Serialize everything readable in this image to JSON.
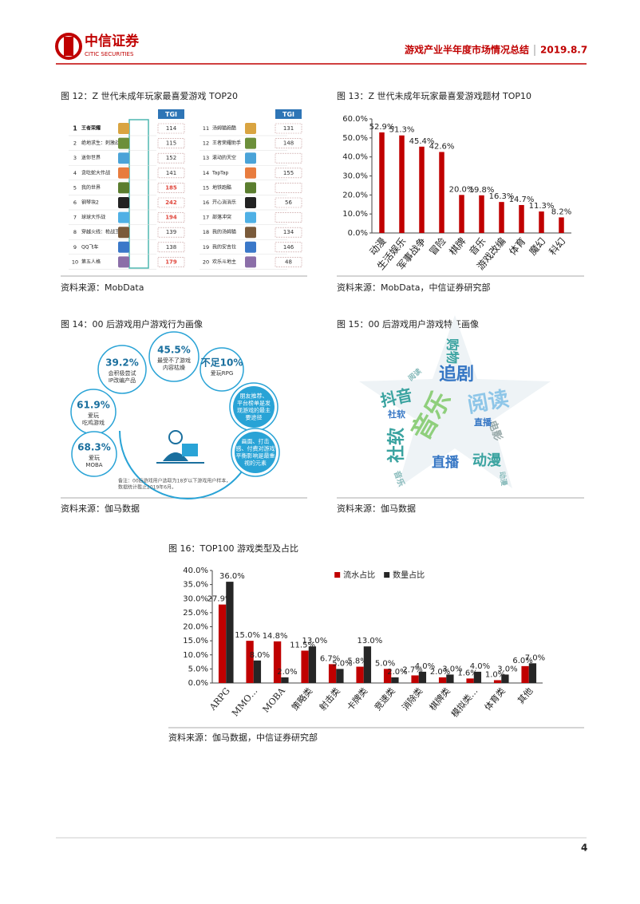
{
  "header": {
    "logo_name": "中信证券",
    "logo_en": "CITIC SECURITIES",
    "report_title": "游戏产业半年度市场情况总结",
    "date": "2019.8.7"
  },
  "figure12": {
    "title": "图 12：Z 世代未成年玩家最喜爱游戏 TOP20",
    "column_header": "TGI",
    "rows": [
      {
        "rank": 1,
        "name": "王者荣耀",
        "tgi": 114
      },
      {
        "rank": 2,
        "name": "绝地求生：刺激战场",
        "tgi": 115
      },
      {
        "rank": 3,
        "name": "迷你世界",
        "tgi": 152
      },
      {
        "rank": 4,
        "name": "贪吃蛇大作战",
        "tgi": 141
      },
      {
        "rank": 5,
        "name": "我的世界",
        "tgi": 185,
        "color": "#e0463c"
      },
      {
        "rank": 6,
        "name": "钢琴块2",
        "tgi": 242,
        "color": "#e0463c"
      },
      {
        "rank": 7,
        "name": "球球大作战",
        "tgi": 194,
        "color": "#e0463c"
      },
      {
        "rank": 8,
        "name": "穿越火线：枪战王者",
        "tgi": 139
      },
      {
        "rank": 9,
        "name": "QQ飞车",
        "tgi": 138
      },
      {
        "rank": 10,
        "name": "第五人格",
        "tgi": 179,
        "color": "#e0463c"
      },
      {
        "rank": 11,
        "name": "汤姆猫跑酷",
        "tgi": 131
      },
      {
        "rank": 12,
        "name": "王者荣耀助手",
        "tgi": 148
      },
      {
        "rank": 13,
        "name": "滚动的天空"
      },
      {
        "rank": 14,
        "name": "TapTap",
        "tgi": 155
      },
      {
        "rank": 15,
        "name": "地铁跑酷"
      },
      {
        "rank": 16,
        "name": "开心消消乐",
        "tgi": 56
      },
      {
        "rank": 17,
        "name": "部落冲突"
      },
      {
        "rank": 18,
        "name": "我的汤姆猫",
        "tgi": 134
      },
      {
        "rank": 19,
        "name": "我的安吉拉",
        "tgi": 146
      },
      {
        "rank": 20,
        "name": "欢乐斗地主",
        "tgi": 48
      }
    ],
    "source": "资料来源：MobData"
  },
  "chart_data": [
    {
      "type": "bar",
      "title": "图 13：Z 世代未成年玩家最喜爱游戏题材 TOP10",
      "categories": [
        "动漫",
        "生活娱乐",
        "军事战争",
        "冒险",
        "棋牌",
        "音乐",
        "游戏改编",
        "体育",
        "魔幻",
        "科幻"
      ],
      "values": [
        52.9,
        51.3,
        45.4,
        42.6,
        20.0,
        19.8,
        16.3,
        14.7,
        11.3,
        8.2
      ],
      "value_labels": [
        "52.9%",
        "51.3%",
        "45.4%",
        "42.6%",
        "20.0%",
        "19.8%",
        "16.3%",
        "14.7%",
        "11.3%",
        "8.2%"
      ],
      "color": "#c00000",
      "ylim": [
        0,
        60
      ],
      "yticks": [
        {
          "value": 0,
          "label": "0.0%"
        },
        {
          "value": 10,
          "label": "10.0%"
        },
        {
          "value": 20,
          "label": "20.0%"
        },
        {
          "value": 30,
          "label": "30.0%"
        },
        {
          "value": 40,
          "label": "40.0%"
        },
        {
          "value": 50,
          "label": "50.0%"
        },
        {
          "value": 60,
          "label": "60.0%"
        }
      ],
      "grid": false,
      "source": "资料来源：MobData，中信证券研究部"
    },
    {
      "type": "bar",
      "title": "图 16：TOP100 游戏类型及占比",
      "categories": [
        "ARPG",
        "MMO…",
        "MOBA",
        "策略类",
        "射击类",
        "卡牌类",
        "竞速类",
        "消除类",
        "棋牌类",
        "模拟类…",
        "体育类",
        "其他"
      ],
      "series": [
        {
          "name": "流水占比",
          "color": "#c00000",
          "values": [
            27.9,
            15.0,
            14.8,
            11.5,
            6.7,
            5.8,
            5.0,
            2.7,
            2.0,
            1.6,
            1.0,
            6.0
          ],
          "value_labels": [
            "27.9%",
            "15.0%",
            "14.8%",
            "11.5%",
            "6.7%",
            "5.8%",
            "5.0%",
            "2.7%",
            "2.0%",
            "1.6%",
            "1.0%",
            "6.0%"
          ]
        },
        {
          "name": "数量占比",
          "color": "#262626",
          "values": [
            36.0,
            8.0,
            2.0,
            13.0,
            5.0,
            13.0,
            2.0,
            4.0,
            3.0,
            4.0,
            3.0,
            7.0
          ],
          "value_labels": [
            "36.0%",
            "8.0%",
            "2.0%",
            "13.0%",
            "5.0%",
            "13.0%",
            "2.0%",
            "4.0%",
            "3.0%",
            "4.0%",
            "3.0%",
            "7.0%"
          ]
        }
      ],
      "ylim": [
        0,
        40
      ],
      "yticks": [
        {
          "value": 0,
          "label": "0.0%"
        },
        {
          "value": 5,
          "label": "5.0%"
        },
        {
          "value": 10,
          "label": "10.0%"
        },
        {
          "value": 15,
          "label": "15.0%"
        },
        {
          "value": 20,
          "label": "20.0%"
        },
        {
          "value": 25,
          "label": "25.0%"
        },
        {
          "value": 30,
          "label": "30.0%"
        },
        {
          "value": 35,
          "label": "35.0%"
        },
        {
          "value": 40,
          "label": "40.0%"
        }
      ],
      "grid": false,
      "legend": "top-right",
      "source": "资料来源：伽马数据，中信证券研究部"
    }
  ],
  "figure14": {
    "title": "图 14：00 后游戏用户游戏行为画像",
    "bubbles": [
      {
        "value": "39.2%",
        "lines": [
          "会积极尝试",
          "IP改编产品"
        ]
      },
      {
        "value": "45.5%",
        "lines": [
          "最受不了游戏",
          "内容枯燥"
        ]
      },
      {
        "value": "不足10%",
        "lines": [
          "爱玩RPG"
        ]
      },
      {
        "value": "61.9%",
        "lines": [
          "爱玩",
          "吃鸡游戏"
        ]
      },
      {
        "value": "68.3%",
        "lines": [
          "爱玩",
          "MOBA"
        ]
      },
      {
        "lines": [
          "朋友推荐、",
          "平台榜单是发",
          "现游戏的最主",
          "要途径"
        ]
      },
      {
        "lines": [
          "画面、打击",
          "感、付费对游戏",
          "平衡影响是最重",
          "视的元素"
        ]
      }
    ],
    "note": [
      "备注：00后游戏用户选取为18岁以下游戏用户样本，",
      "数据统计截止2019年6月。"
    ],
    "source": "资料来源：伽马数据"
  },
  "figure15": {
    "title": "图 15：00 后游戏用户游戏特征画像",
    "words": [
      "购物",
      "追剧",
      "抖音",
      "阅读",
      "社软",
      "音乐",
      "直播",
      "动漫",
      "电影",
      "社软",
      "直播",
      "音乐",
      "阅读",
      "动漫"
    ],
    "source": "资料来源：伽马数据"
  },
  "footer": {
    "page": 4
  }
}
